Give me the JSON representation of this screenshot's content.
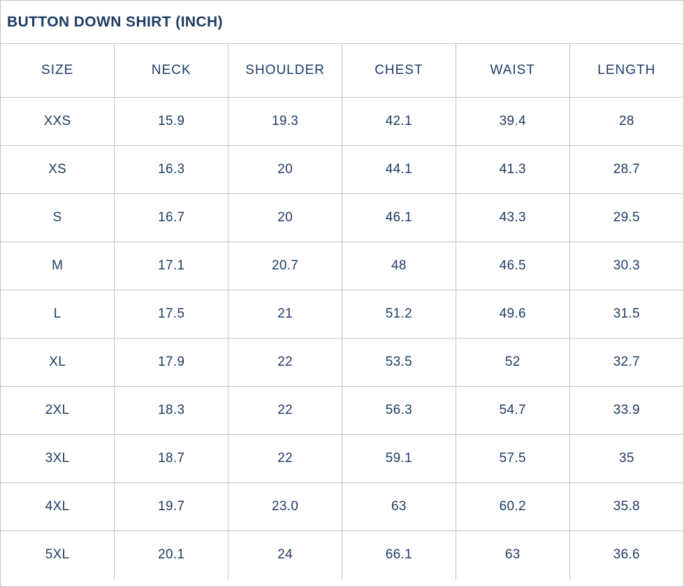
{
  "title": "BUTTON DOWN SHIRT (INCH)",
  "colors": {
    "text": "#1e3c64",
    "border": "#c2c2c2",
    "background": "#ffffff"
  },
  "table": {
    "headers": [
      "SIZE",
      "NECK",
      "SHOULDER",
      "CHEST",
      "WAIST",
      "LENGTH"
    ],
    "rows": [
      [
        "XXS",
        "15.9",
        "19.3",
        "42.1",
        "39.4",
        "28"
      ],
      [
        "XS",
        "16.3",
        "20",
        "44.1",
        "41.3",
        "28.7"
      ],
      [
        "S",
        "16.7",
        "20",
        "46.1",
        "43.3",
        "29.5"
      ],
      [
        "M",
        "17.1",
        "20.7",
        "48",
        "46.5",
        "30.3"
      ],
      [
        "L",
        "17.5",
        "21",
        "51.2",
        "49.6",
        "31.5"
      ],
      [
        "XL",
        "17.9",
        "22",
        "53.5",
        "52",
        "32.7"
      ],
      [
        "2XL",
        "18.3",
        "22",
        "56.3",
        "54.7",
        "33.9"
      ],
      [
        "3XL",
        "18.7",
        "22",
        "59.1",
        "57.5",
        "35"
      ],
      [
        "4XL",
        "19.7",
        "23.0",
        "63",
        "60.2",
        "35.8"
      ],
      [
        "5XL",
        "20.1",
        "24",
        "66.1",
        "63",
        "36.6"
      ]
    ]
  },
  "chart_data": {
    "type": "table",
    "title": "BUTTON DOWN SHIRT (INCH)",
    "categories": [
      "XXS",
      "XS",
      "S",
      "M",
      "L",
      "XL",
      "2XL",
      "3XL",
      "4XL",
      "5XL"
    ],
    "series": [
      {
        "name": "NECK",
        "values": [
          15.9,
          16.3,
          16.7,
          17.1,
          17.5,
          17.9,
          18.3,
          18.7,
          19.7,
          20.1
        ]
      },
      {
        "name": "SHOULDER",
        "values": [
          19.3,
          20,
          20,
          20.7,
          21,
          22,
          22,
          22,
          23.0,
          24
        ]
      },
      {
        "name": "CHEST",
        "values": [
          42.1,
          44.1,
          46.1,
          48,
          51.2,
          53.5,
          56.3,
          59.1,
          63,
          66.1
        ]
      },
      {
        "name": "WAIST",
        "values": [
          39.4,
          41.3,
          43.3,
          46.5,
          49.6,
          52,
          54.7,
          57.5,
          60.2,
          63
        ]
      },
      {
        "name": "LENGTH",
        "values": [
          28,
          28.7,
          29.5,
          30.3,
          31.5,
          32.7,
          33.9,
          35,
          35.8,
          36.6
        ]
      }
    ],
    "units": "inch"
  }
}
